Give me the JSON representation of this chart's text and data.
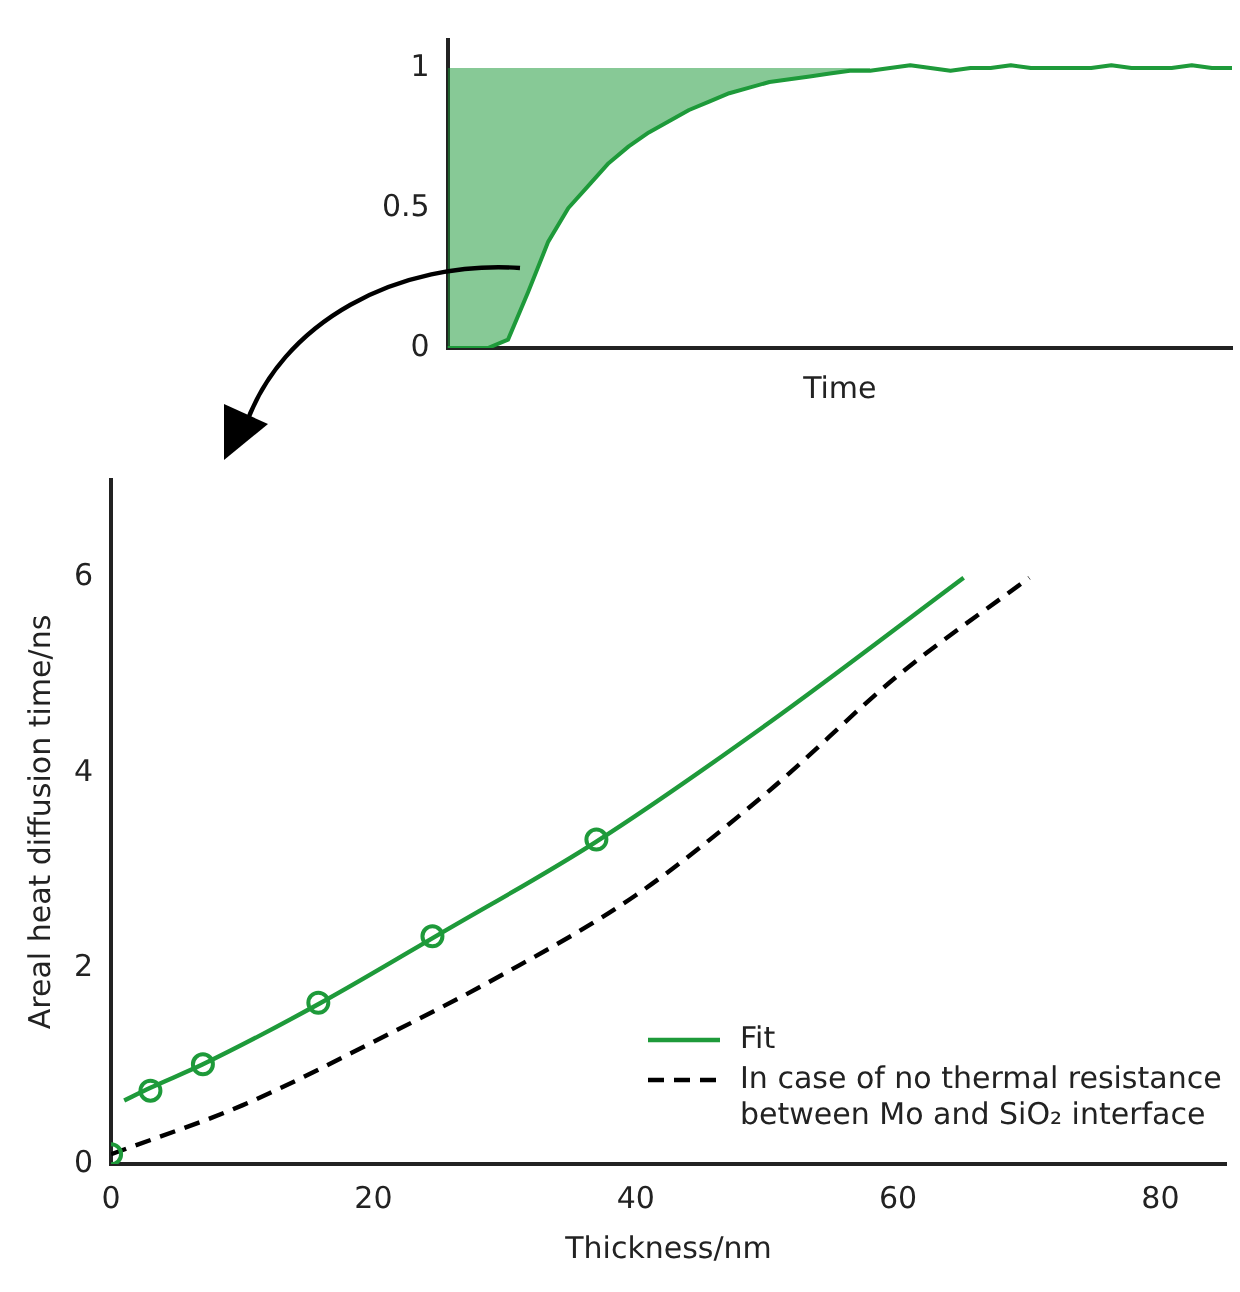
{
  "chart_data": [
    {
      "type": "line",
      "xlabel": "Time",
      "categories": [
        null,
        null,
        null,
        null,
        null,
        null,
        null,
        null,
        null,
        null,
        null,
        null,
        null,
        null,
        null,
        null,
        null,
        null,
        null,
        null,
        null,
        null,
        null,
        null,
        null,
        null,
        null,
        null,
        null,
        null,
        null,
        null,
        null,
        null,
        null,
        null,
        null,
        null,
        null,
        null
      ],
      "series": [
        {
          "color": "#1e9a3a",
          "values": [
            0,
            0,
            0,
            0.03,
            0.2,
            0.38,
            0.5,
            0.58,
            0.66,
            0.72,
            0.77,
            0.81,
            0.85,
            0.88,
            0.91,
            0.93,
            0.95,
            0.96,
            0.97,
            0.98,
            0.99,
            0.99,
            1,
            1.01,
            1,
            0.99,
            1,
            1,
            1.01,
            1,
            1,
            1,
            1,
            1.01,
            1,
            1,
            1,
            1.01,
            1,
            1
          ],
          "lower": [
            0,
            0,
            0,
            0.03,
            0.2,
            0.38,
            0.5,
            0.58,
            0.66,
            0.72,
            0.77,
            0.81,
            0.85,
            0.88,
            0.91,
            0.93,
            0.95,
            0.96,
            0.97,
            0.98,
            0.99,
            0.99,
            null,
            null,
            null,
            null,
            null,
            null,
            null,
            null,
            null,
            null,
            null,
            null,
            null,
            null,
            null,
            null,
            null,
            null
          ],
          "upper": [
            1,
            1,
            1,
            1,
            1,
            1,
            1,
            1,
            1,
            1,
            1,
            1,
            1,
            1,
            1,
            1,
            1,
            1,
            1,
            1,
            1,
            1,
            null,
            null,
            null,
            null,
            null,
            null,
            null,
            null,
            null,
            null,
            null,
            null,
            null,
            null,
            null,
            null,
            null,
            null
          ]
        }
      ],
      "ylim": [
        0,
        1.1
      ],
      "yticks": [
        0,
        0.5,
        1
      ],
      "tick_labels": "y",
      "grid": false,
      "legend": false
    },
    {
      "type": "scatter",
      "xlabel": "Thickness/nm",
      "ylabel": "Areal heat diffusion time/ns",
      "series": [
        {
          "type": "scatter",
          "color": "#1e9a3a",
          "marker": "circle",
          "x": [
            0,
            3,
            7,
            15.8,
            24.5,
            37
          ],
          "values": [
            0.1,
            0.75,
            1.02,
            1.65,
            2.33,
            3.32
          ]
        },
        {
          "type": "line",
          "name": "Fit",
          "color": "#1e9a3a",
          "line_style": "solid",
          "x": [
            1,
            3,
            7,
            16,
            25,
            37,
            50,
            65
          ],
          "values": [
            0.65,
            0.78,
            1.02,
            1.65,
            2.35,
            3.3,
            4.5,
            6.0
          ]
        },
        {
          "type": "line",
          "name": "In case of no thermal resistance between Mo and SiO₂ interface",
          "color": "#000000",
          "line_style": "dashed",
          "x": [
            0,
            10,
            20,
            30,
            40,
            50,
            60,
            70
          ],
          "values": [
            0.1,
            0.6,
            1.25,
            1.95,
            2.75,
            3.8,
            5.0,
            6.0
          ]
        }
      ],
      "xlim": [
        0,
        85
      ],
      "xticks": [
        0,
        20,
        40,
        60,
        80
      ],
      "ylim": [
        0,
        7
      ],
      "yticks": [
        0,
        2,
        4,
        6
      ],
      "grid": false,
      "legend": "bottom right"
    }
  ]
}
